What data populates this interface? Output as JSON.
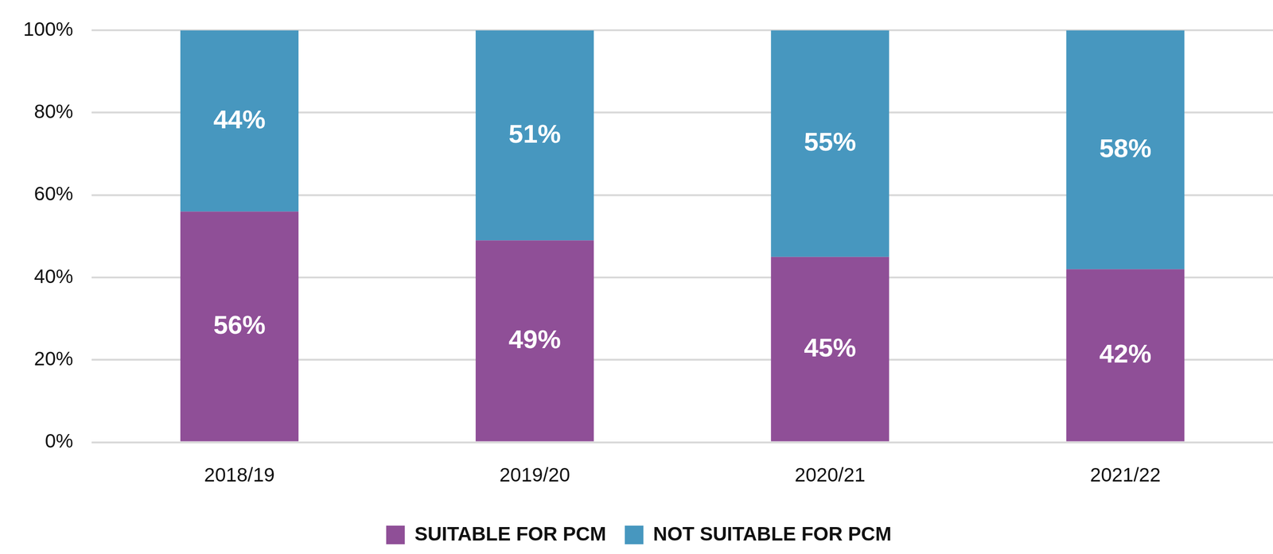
{
  "chart_data": {
    "type": "bar",
    "categories": [
      "2018/19",
      "2019/20",
      "2020/21",
      "2021/22"
    ],
    "series": [
      {
        "name": "SUITABLE FOR PCM",
        "color": "#8f4f97",
        "values": [
          56,
          49,
          45,
          42
        ],
        "value_labels": [
          "56%",
          "49%",
          "45%",
          "42%"
        ]
      },
      {
        "name": "NOT SUITABLE FOR PCM",
        "color": "#4797bf",
        "values": [
          44,
          51,
          55,
          58
        ],
        "value_labels": [
          "44%",
          "51%",
          "55%",
          "58%"
        ]
      }
    ],
    "ylim": [
      0,
      100
    ],
    "yticks": [
      {
        "value": 0,
        "label": "0%"
      },
      {
        "value": 20,
        "label": "20%"
      },
      {
        "value": 40,
        "label": "40%"
      },
      {
        "value": 60,
        "label": "60%"
      },
      {
        "value": 80,
        "label": "80%"
      },
      {
        "value": 100,
        "label": "100%"
      }
    ],
    "stacked": true,
    "data_labels": true,
    "grid": true,
    "legend": "bottom"
  }
}
